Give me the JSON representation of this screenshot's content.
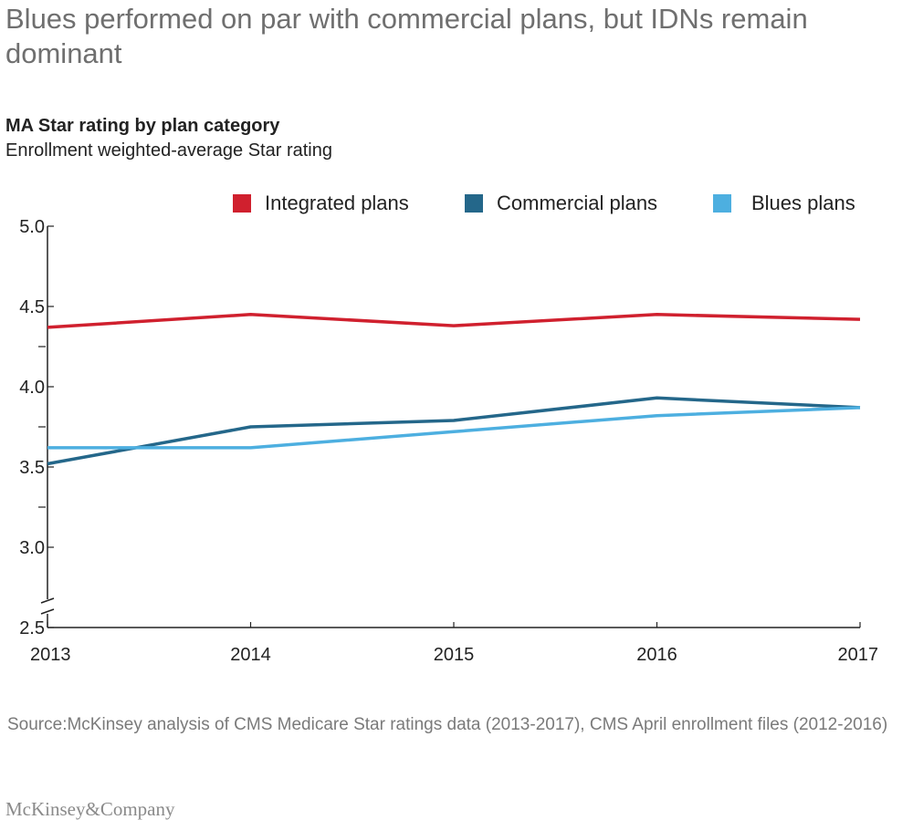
{
  "header": {
    "headline": "Blues performed on par with commercial plans, but IDNs remain dominant"
  },
  "footer": {
    "source": "Source:McKinsey analysis of CMS Medicare Star ratings data (2013-2017), CMS April enrollment files (2012-2016)",
    "logo_text": "McKinsey&Company"
  },
  "chart_data": {
    "type": "line",
    "title": "MA Star rating by plan category",
    "subtitle": "Enrollment weighted-average Star rating",
    "x": [
      "2013",
      "2014",
      "2015",
      "2016",
      "2017"
    ],
    "ylim": [
      2.5,
      5.0
    ],
    "yticks": [
      "5.0",
      "4.5",
      "4.0",
      "3.5",
      "3.0",
      "2.5"
    ],
    "axis_break": true,
    "grid": false,
    "legend_position": "top-right",
    "series": [
      {
        "name": "Integrated plans",
        "color": "#d0202e",
        "values": [
          4.37,
          4.45,
          4.38,
          4.45,
          4.42
        ]
      },
      {
        "name": "Commercial plans",
        "color": "#24678a",
        "values": [
          3.52,
          3.75,
          3.79,
          3.93,
          3.87
        ]
      },
      {
        "name": "Blues plans",
        "color": "#4dafe0",
        "values": [
          3.62,
          3.62,
          3.72,
          3.82,
          3.87
        ]
      }
    ]
  }
}
